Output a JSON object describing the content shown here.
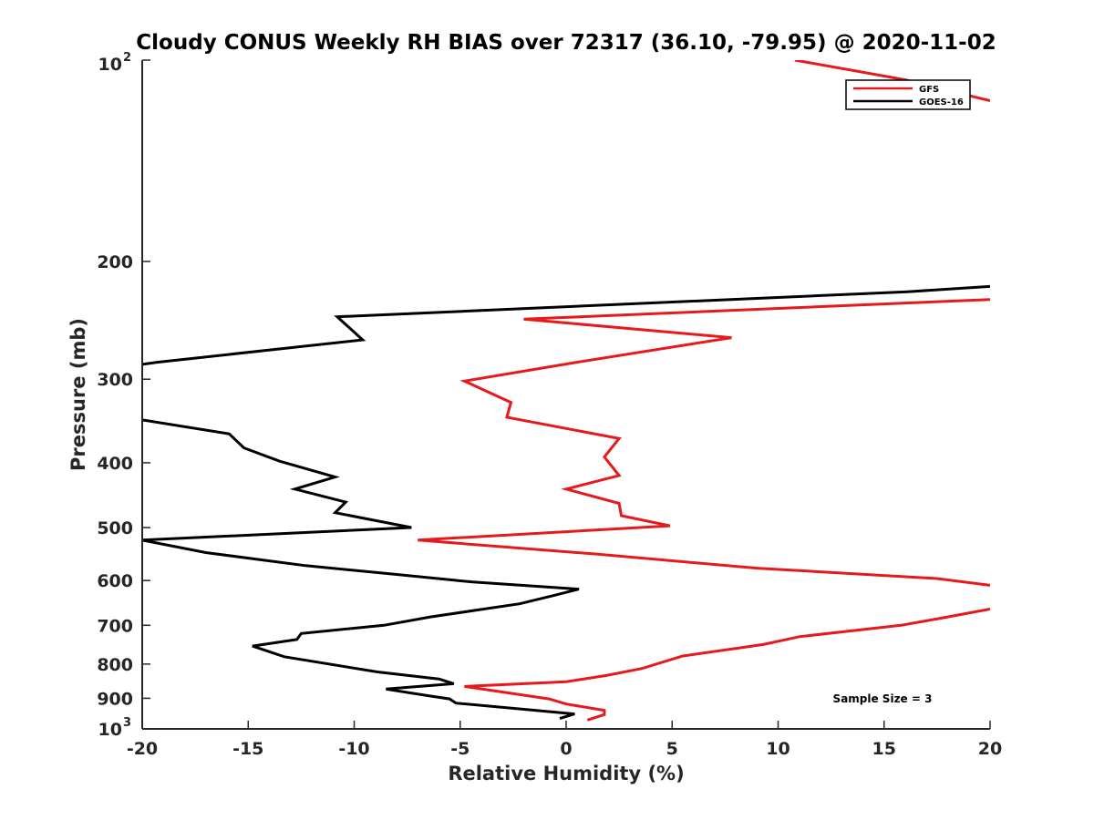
{
  "chart_data": {
    "type": "line",
    "title": "Cloudy CONUS Weekly RH BIAS over 72317 (36.10, -79.95) @ 2020-11-02",
    "xlabel": "Relative Humidity (%)",
    "ylabel": "Pressure (mb)",
    "xlim": [
      -20,
      20
    ],
    "ylim": [
      100,
      1000
    ],
    "y_scale": "log",
    "y_reversed": true,
    "grid": false,
    "legend_position": "top-right",
    "x_ticks": [
      "-20",
      "-15",
      "-10",
      "-5",
      "0",
      "5",
      "10",
      "15",
      "20"
    ],
    "y_ticks": [
      {
        "value": 100,
        "base": "10",
        "exp": "2"
      },
      {
        "value": 200,
        "label": "200"
      },
      {
        "value": 300,
        "label": "300"
      },
      {
        "value": 400,
        "label": "400"
      },
      {
        "value": 500,
        "label": "500"
      },
      {
        "value": 600,
        "label": "600"
      },
      {
        "value": 700,
        "label": "700"
      },
      {
        "value": 800,
        "label": "800"
      },
      {
        "value": 900,
        "label": "900"
      },
      {
        "value": 1000,
        "base": "10",
        "exp": "3"
      }
    ],
    "annotation": "Sample Size = 3",
    "series": [
      {
        "name": "GFS",
        "color": "#e41a1c",
        "segments": [
          [
            [
              10.8,
              100
            ],
            [
              16,
              107
            ],
            [
              18.5,
              112
            ],
            [
              20,
              115
            ]
          ],
          [
            [
              20,
              228
            ],
            [
              -2,
              244
            ],
            [
              7.8,
              260
            ],
            [
              0.5,
              283
            ],
            [
              -4.8,
              302
            ],
            [
              -2.6,
              325
            ],
            [
              -2.8,
              342
            ],
            [
              2.5,
              368
            ],
            [
              1.8,
              392
            ],
            [
              2.5,
              418
            ],
            [
              0,
              438
            ],
            [
              2.5,
              460
            ],
            [
              2.6,
              480
            ],
            [
              4.9,
              497
            ],
            [
              -7,
              522
            ],
            [
              1.5,
              548
            ],
            [
              9,
              575
            ],
            [
              17.5,
              596
            ],
            [
              20,
              610
            ]
          ],
          [
            [
              20,
              662
            ],
            [
              17.8,
              682
            ],
            [
              15.8,
              700
            ],
            [
              11,
              728
            ],
            [
              9.3,
              748
            ],
            [
              5.5,
              778
            ],
            [
              3.6,
              812
            ],
            [
              1.9,
              832
            ],
            [
              0,
              850
            ],
            [
              -4.8,
              864
            ],
            [
              -0.8,
              902
            ],
            [
              0,
              918
            ],
            [
              1.8,
              938
            ],
            [
              1.8,
              952
            ],
            [
              1,
              970
            ]
          ]
        ]
      },
      {
        "name": "GOES-16",
        "color": "#000000",
        "segments": [
          [
            [
              20,
              218
            ],
            [
              16.1,
              222
            ],
            [
              -10.8,
              242
            ],
            [
              -9.6,
              262
            ],
            [
              -19.3,
              283
            ],
            [
              -20,
              285
            ]
          ],
          [
            [
              -20,
              345
            ],
            [
              -15.9,
              362
            ],
            [
              -15.2,
              380
            ],
            [
              -13.5,
              398
            ],
            [
              -10.9,
              420
            ],
            [
              -12.8,
              438
            ],
            [
              -10.4,
              458
            ],
            [
              -10.9,
              475
            ],
            [
              -7.3,
              500
            ],
            [
              -20,
              522
            ],
            [
              -17,
              545
            ],
            [
              -12.3,
              570
            ],
            [
              -8.6,
              585
            ],
            [
              -4.4,
              603
            ],
            [
              0.6,
              618
            ],
            [
              -0.6,
              632
            ],
            [
              -2.2,
              650
            ],
            [
              -6.4,
              680
            ],
            [
              -8.6,
              700
            ],
            [
              -12.5,
              720
            ],
            [
              -12.7,
              735
            ],
            [
              -14.8,
              752
            ],
            [
              -13.3,
              780
            ],
            [
              -8.9,
              822
            ],
            [
              -6,
              842
            ],
            [
              -5.3,
              856
            ],
            [
              -8.5,
              872
            ],
            [
              -6.5,
              892
            ],
            [
              -5.5,
              902
            ],
            [
              -5.2,
              915
            ],
            [
              0.4,
              950
            ],
            [
              -0.3,
              965
            ]
          ]
        ]
      }
    ]
  }
}
